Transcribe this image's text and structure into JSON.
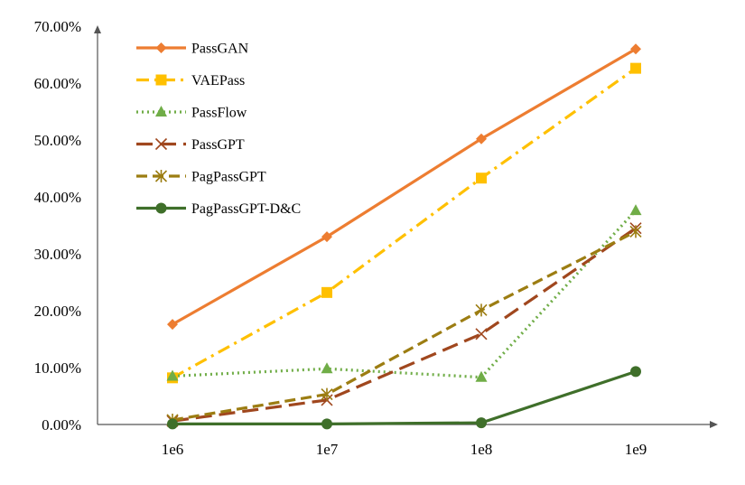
{
  "chart_data": {
    "type": "line",
    "title": "",
    "xlabel": "",
    "ylabel": "",
    "categories": [
      "1e6",
      "1e7",
      "1e8",
      "1e9"
    ],
    "ylim": [
      0,
      70
    ],
    "yticks": [
      0,
      10,
      20,
      30,
      40,
      50,
      60,
      70
    ],
    "ytick_labels": [
      "0.00%",
      "10.00%",
      "20.00%",
      "30.00%",
      "40.00%",
      "50.00%",
      "60.00%",
      "70.00%"
    ],
    "grid": false,
    "legend_position": "top-left",
    "series": [
      {
        "name": "PassGAN",
        "values": [
          17.6,
          33.0,
          50.2,
          66.0
        ],
        "color": "#ED7D31",
        "dash": "solid",
        "marker": "diamond"
      },
      {
        "name": "VAEPass",
        "values": [
          8.2,
          23.2,
          43.3,
          62.6
        ],
        "color": "#FFC000",
        "dash": "dashdot",
        "marker": "square"
      },
      {
        "name": "PassFlow",
        "values": [
          8.5,
          9.8,
          8.3,
          37.6
        ],
        "color": "#70AD47",
        "dash": "dotted",
        "marker": "triangle"
      },
      {
        "name": "PassGPT",
        "values": [
          0.6,
          4.3,
          15.9,
          34.5
        ],
        "color": "#A0471E",
        "dash": "longdash",
        "marker": "x"
      },
      {
        "name": "PagPassGPT",
        "values": [
          0.8,
          5.3,
          20.1,
          33.9
        ],
        "color": "#9C7D12",
        "dash": "dash",
        "marker": "star"
      },
      {
        "name": "PagPassGPT-D&C",
        "values": [
          0.1,
          0.1,
          0.3,
          9.3
        ],
        "color": "#3F6F2A",
        "dash": "solid",
        "marker": "circle"
      }
    ]
  }
}
